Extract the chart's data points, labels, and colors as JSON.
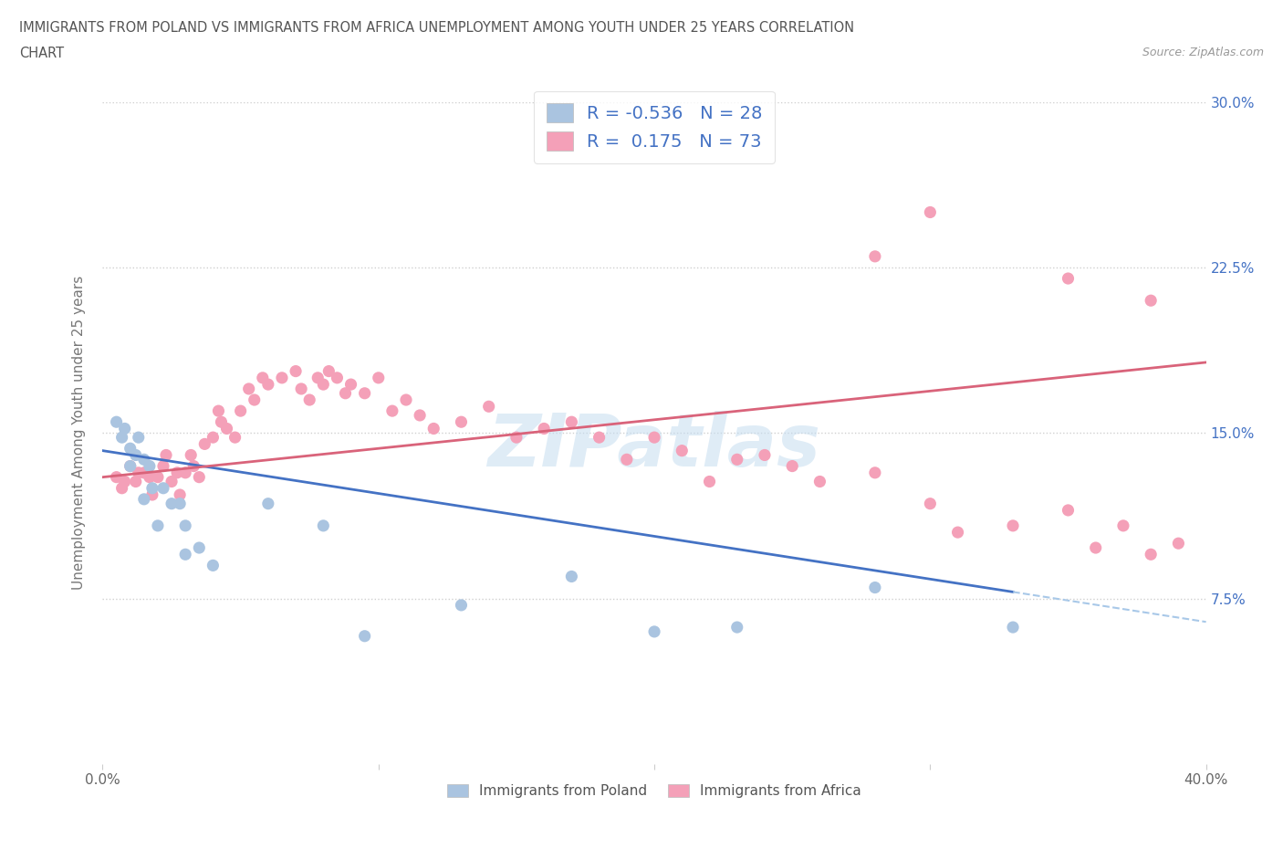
{
  "title_line1": "IMMIGRANTS FROM POLAND VS IMMIGRANTS FROM AFRICA UNEMPLOYMENT AMONG YOUTH UNDER 25 YEARS CORRELATION",
  "title_line2": "CHART",
  "source_text": "Source: ZipAtlas.com",
  "ylabel": "Unemployment Among Youth under 25 years",
  "xlim": [
    0.0,
    0.4
  ],
  "ylim": [
    0.0,
    0.3
  ],
  "watermark": "ZIPatlas",
  "legend_R1": "-0.536",
  "legend_N1": "28",
  "legend_R2": "0.175",
  "legend_N2": "73",
  "color_poland": "#aac4e0",
  "color_africa": "#f4a0b8",
  "trendline_color_poland": "#4472c4",
  "trendline_color_africa": "#d9637a",
  "dashed_color": "#a8c8e8",
  "poland_trend_start_y": 0.142,
  "poland_trend_end_y": 0.078,
  "poland_trend_end_x": 0.33,
  "africa_trend_start_y": 0.13,
  "africa_trend_end_y": 0.182,
  "poland_x": [
    0.005,
    0.007,
    0.008,
    0.01,
    0.01,
    0.012,
    0.013,
    0.015,
    0.015,
    0.017,
    0.018,
    0.02,
    0.022,
    0.025,
    0.028,
    0.03,
    0.03,
    0.035,
    0.04,
    0.06,
    0.08,
    0.095,
    0.13,
    0.17,
    0.2,
    0.23,
    0.28,
    0.33
  ],
  "poland_y": [
    0.155,
    0.148,
    0.152,
    0.143,
    0.135,
    0.14,
    0.148,
    0.138,
    0.12,
    0.135,
    0.125,
    0.108,
    0.125,
    0.118,
    0.118,
    0.108,
    0.095,
    0.098,
    0.09,
    0.118,
    0.108,
    0.058,
    0.072,
    0.085,
    0.06,
    0.062,
    0.08,
    0.062
  ],
  "africa_x": [
    0.005,
    0.007,
    0.008,
    0.01,
    0.012,
    0.013,
    0.015,
    0.017,
    0.018,
    0.02,
    0.022,
    0.023,
    0.025,
    0.027,
    0.028,
    0.03,
    0.032,
    0.033,
    0.035,
    0.037,
    0.04,
    0.042,
    0.043,
    0.045,
    0.048,
    0.05,
    0.053,
    0.055,
    0.058,
    0.06,
    0.065,
    0.07,
    0.072,
    0.075,
    0.078,
    0.08,
    0.082,
    0.085,
    0.088,
    0.09,
    0.095,
    0.1,
    0.105,
    0.11,
    0.115,
    0.12,
    0.13,
    0.14,
    0.15,
    0.16,
    0.17,
    0.18,
    0.19,
    0.2,
    0.21,
    0.22,
    0.23,
    0.24,
    0.25,
    0.26,
    0.28,
    0.3,
    0.31,
    0.33,
    0.35,
    0.36,
    0.37,
    0.38,
    0.39,
    0.28,
    0.3,
    0.35,
    0.38
  ],
  "africa_y": [
    0.13,
    0.125,
    0.128,
    0.135,
    0.128,
    0.132,
    0.132,
    0.13,
    0.122,
    0.13,
    0.135,
    0.14,
    0.128,
    0.132,
    0.122,
    0.132,
    0.14,
    0.135,
    0.13,
    0.145,
    0.148,
    0.16,
    0.155,
    0.152,
    0.148,
    0.16,
    0.17,
    0.165,
    0.175,
    0.172,
    0.175,
    0.178,
    0.17,
    0.165,
    0.175,
    0.172,
    0.178,
    0.175,
    0.168,
    0.172,
    0.168,
    0.175,
    0.16,
    0.165,
    0.158,
    0.152,
    0.155,
    0.162,
    0.148,
    0.152,
    0.155,
    0.148,
    0.138,
    0.148,
    0.142,
    0.128,
    0.138,
    0.14,
    0.135,
    0.128,
    0.132,
    0.118,
    0.105,
    0.108,
    0.115,
    0.098,
    0.108,
    0.095,
    0.1,
    0.23,
    0.25,
    0.22,
    0.21
  ]
}
